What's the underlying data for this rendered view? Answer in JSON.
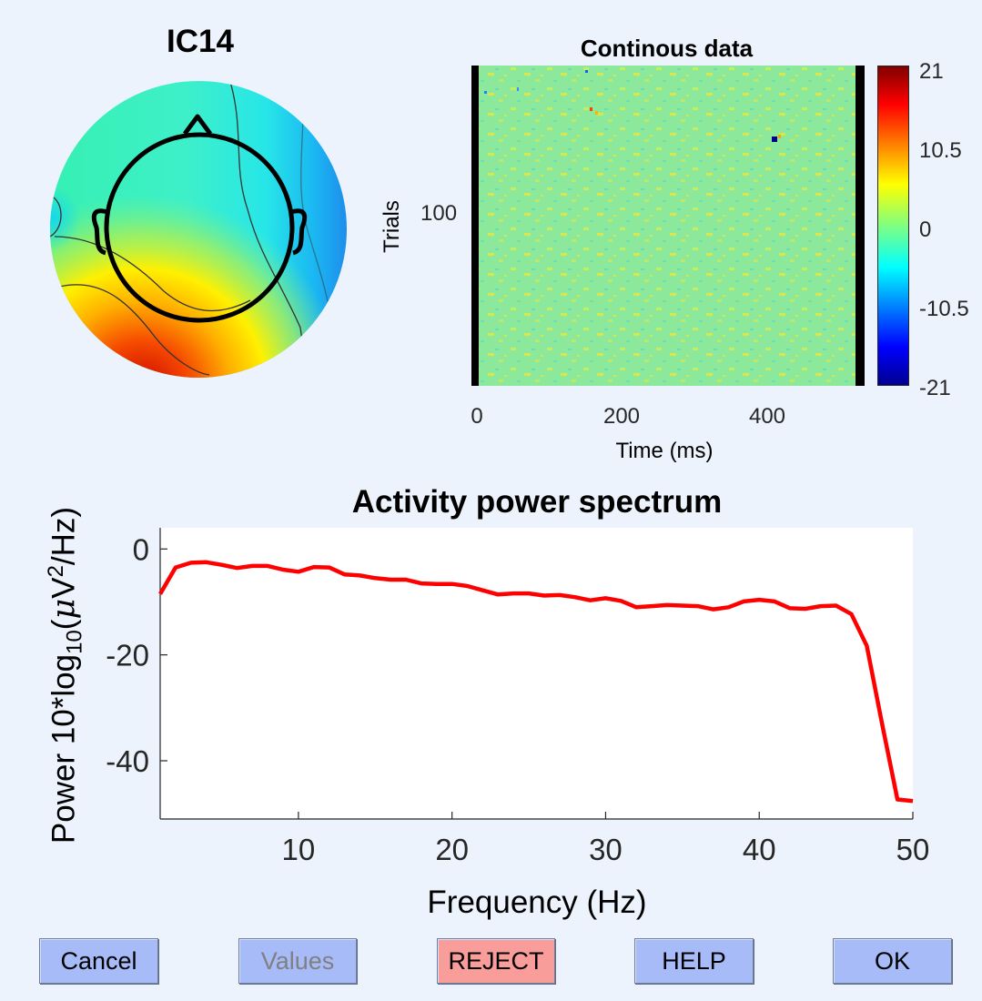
{
  "topoplot": {
    "title": "IC14"
  },
  "erpimage": {
    "title": "Continous data",
    "ylabel": "Trials",
    "ytick": "100",
    "xlabel": "Time (ms)",
    "xticks": [
      "0",
      "200",
      "400"
    ],
    "colorbar_ticks": [
      "21",
      "10.5",
      "0",
      "-10.5",
      "-21"
    ]
  },
  "spectrum": {
    "title": "Activity power spectrum",
    "xlabel": "Frequency (Hz)",
    "ylabel_parts": {
      "a": "Power 10*log",
      "sub": "10",
      "b": "(",
      "mu": "μ",
      "c": "V",
      "sup": "2",
      "d": "/Hz)"
    },
    "yticks": [
      "0",
      "-20",
      "-40"
    ],
    "xticks": [
      "10",
      "20",
      "30",
      "40",
      "50"
    ],
    "line_color": "#ff0000"
  },
  "chart_data": {
    "type": "line",
    "title": "Activity power spectrum",
    "xlabel": "Frequency (Hz)",
    "ylabel": "Power 10*log10(μV2/Hz)",
    "xlim": [
      1,
      50
    ],
    "ylim": [
      -51,
      4
    ],
    "series": [
      {
        "x": [
          1,
          2,
          3,
          4,
          5,
          6,
          7,
          8,
          9,
          10,
          11,
          12,
          13,
          14,
          15,
          16,
          17,
          18,
          19,
          20,
          21,
          22,
          23,
          24,
          25,
          26,
          27,
          28,
          29,
          30,
          31,
          32,
          33,
          34,
          35,
          36,
          37,
          38,
          39,
          40,
          41,
          42,
          43,
          44,
          45,
          46,
          47,
          48,
          49,
          50
        ],
        "y": [
          -8.5,
          -3.5,
          -2.6,
          -2.5,
          -3.0,
          -3.6,
          -3.2,
          -3.2,
          -3.9,
          -4.3,
          -3.4,
          -3.5,
          -4.8,
          -5.0,
          -5.5,
          -5.8,
          -5.8,
          -6.5,
          -6.6,
          -6.6,
          -7.0,
          -7.8,
          -8.6,
          -8.4,
          -8.4,
          -8.8,
          -8.7,
          -9.1,
          -9.7,
          -9.3,
          -9.8,
          -11.0,
          -10.8,
          -10.6,
          -10.7,
          -10.8,
          -11.4,
          -11.0,
          -9.9,
          -9.6,
          -9.9,
          -11.2,
          -11.3,
          -10.8,
          -10.7,
          -12.3,
          -18.3,
          -33.0,
          -47.3,
          -47.6
        ]
      }
    ]
  },
  "buttons": {
    "cancel": "Cancel",
    "values": "Values",
    "reject": "REJECT",
    "help": "HELP",
    "ok": "OK"
  },
  "colors": {
    "button_blue": "#a7bbf8",
    "button_reject": "#f99d9a",
    "values_disabled_text": "#808080",
    "background": "#edf3fc"
  }
}
